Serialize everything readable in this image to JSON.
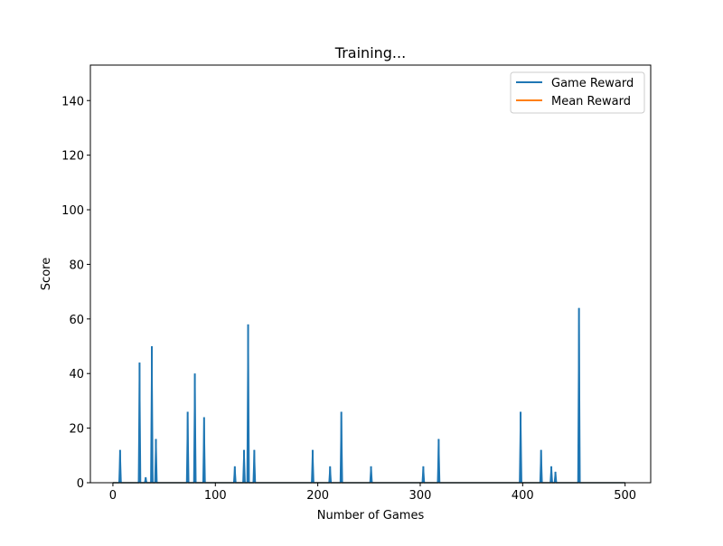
{
  "chart_data": {
    "type": "line",
    "title": "Training...",
    "xlabel": "Number of Games",
    "ylabel": "Score",
    "xlim": [
      -22,
      525
    ],
    "ylim": [
      0,
      153
    ],
    "xticks": [
      0,
      100,
      200,
      300,
      400,
      500
    ],
    "yticks": [
      0,
      20,
      40,
      60,
      80,
      100,
      120,
      140
    ],
    "grid": false,
    "legend_position": "top-right",
    "series": [
      {
        "name": "Game Reward",
        "color": "#1f77b4",
        "spikes": [
          {
            "x": 7,
            "y": 12
          },
          {
            "x": 26,
            "y": 44
          },
          {
            "x": 32,
            "y": 2
          },
          {
            "x": 38,
            "y": 50
          },
          {
            "x": 42,
            "y": 16
          },
          {
            "x": 73,
            "y": 26
          },
          {
            "x": 80,
            "y": 40
          },
          {
            "x": 89,
            "y": 24
          },
          {
            "x": 119,
            "y": 6
          },
          {
            "x": 128,
            "y": 12
          },
          {
            "x": 132,
            "y": 58
          },
          {
            "x": 138,
            "y": 12
          },
          {
            "x": 195,
            "y": 12
          },
          {
            "x": 212,
            "y": 6
          },
          {
            "x": 223,
            "y": 26
          },
          {
            "x": 252,
            "y": 6
          },
          {
            "x": 303,
            "y": 6
          },
          {
            "x": 318,
            "y": 16
          },
          {
            "x": 398,
            "y": 26
          },
          {
            "x": 418,
            "y": 12
          },
          {
            "x": 428,
            "y": 6
          },
          {
            "x": 432,
            "y": 4
          },
          {
            "x": 455,
            "y": 64
          }
        ],
        "x_max": 500
      },
      {
        "name": "Mean Reward",
        "color": "#ff7f0e",
        "points": [
          [
            0,
            0
          ],
          [
            100,
            0
          ],
          [
            200,
            0
          ],
          [
            300,
            0
          ],
          [
            400,
            0
          ],
          [
            500,
            0
          ]
        ]
      }
    ]
  }
}
